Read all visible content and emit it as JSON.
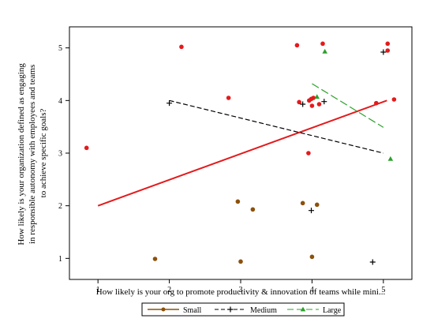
{
  "chart_data": {
    "type": "scatter",
    "title": "",
    "xlabel": "How likely is your org to promote productivity & innovation of teams while mini...",
    "ylabel_lines": [
      "How likely is your organization defined as engaging",
      "in responsible autonomy with employees and teams",
      "to achieve specific goals?"
    ],
    "xlim": [
      0.6,
      5.4
    ],
    "ylim": [
      0.6,
      5.4
    ],
    "xticks": [
      1,
      2,
      3,
      4,
      5
    ],
    "yticks": [
      1,
      2,
      3,
      4,
      5
    ],
    "grid": false,
    "legend_position": "bottom",
    "series": [
      {
        "name": "Small",
        "marker": "circle",
        "marker_color": "#e41a1c",
        "points": [
          {
            "x": 0.84,
            "y": 3.1,
            "color": "#e41a1c"
          },
          {
            "x": 2.17,
            "y": 5.02,
            "color": "#e41a1c"
          },
          {
            "x": 2.83,
            "y": 4.05,
            "color": "#e41a1c"
          },
          {
            "x": 3.79,
            "y": 5.05,
            "color": "#e41a1c"
          },
          {
            "x": 3.82,
            "y": 3.97,
            "color": "#e41a1c"
          },
          {
            "x": 3.96,
            "y": 4.0,
            "color": "#e41a1c"
          },
          {
            "x": 4.0,
            "y": 3.9,
            "color": "#e41a1c"
          },
          {
            "x": 3.99,
            "y": 4.03,
            "color": "#e41a1c"
          },
          {
            "x": 4.02,
            "y": 4.05,
            "color": "#e41a1c"
          },
          {
            "x": 4.1,
            "y": 3.93,
            "color": "#e41a1c"
          },
          {
            "x": 4.15,
            "y": 5.08,
            "color": "#e41a1c"
          },
          {
            "x": 3.95,
            "y": 3.0,
            "color": "#e41a1c"
          },
          {
            "x": 4.9,
            "y": 3.95,
            "color": "#e41a1c"
          },
          {
            "x": 5.06,
            "y": 5.08,
            "color": "#e41a1c"
          },
          {
            "x": 5.06,
            "y": 4.95,
            "color": "#e41a1c"
          },
          {
            "x": 5.15,
            "y": 4.02,
            "color": "#e41a1c"
          },
          {
            "x": 1.8,
            "y": 0.99,
            "color": "#8c510a"
          },
          {
            "x": 2.96,
            "y": 2.08,
            "color": "#8c510a"
          },
          {
            "x": 3.17,
            "y": 1.93,
            "color": "#8c510a"
          },
          {
            "x": 3.0,
            "y": 0.94,
            "color": "#8c510a"
          },
          {
            "x": 3.87,
            "y": 2.05,
            "color": "#8c510a"
          },
          {
            "x": 4.07,
            "y": 2.02,
            "color": "#8c510a"
          },
          {
            "x": 4.0,
            "y": 1.03,
            "color": "#8c510a"
          }
        ],
        "fit_line": {
          "x": [
            1.0,
            5.05
          ],
          "y": [
            2.0,
            4.0
          ],
          "color": "#e41a1c",
          "style": "solid"
        }
      },
      {
        "name": "Medium",
        "marker": "plus",
        "marker_color": "#000000",
        "points": [
          {
            "x": 2.0,
            "y": 3.95
          },
          {
            "x": 3.87,
            "y": 3.93
          },
          {
            "x": 4.17,
            "y": 3.98
          },
          {
            "x": 3.99,
            "y": 1.91
          },
          {
            "x": 4.85,
            "y": 0.93
          },
          {
            "x": 5.0,
            "y": 4.92
          }
        ],
        "fit_line": {
          "x": [
            2.0,
            5.0
          ],
          "y": [
            4.0,
            3.0
          ],
          "color": "#000000",
          "style": "dashed"
        }
      },
      {
        "name": "Large",
        "marker": "triangle",
        "marker_color": "#2ca02c",
        "points": [
          {
            "x": 4.07,
            "y": 4.07
          },
          {
            "x": 4.18,
            "y": 4.93
          },
          {
            "x": 5.1,
            "y": 2.89
          }
        ],
        "fit_line": {
          "x": [
            4.0,
            5.0
          ],
          "y": [
            4.32,
            3.49
          ],
          "color": "#2ca02c",
          "style": "longdash"
        }
      }
    ]
  }
}
